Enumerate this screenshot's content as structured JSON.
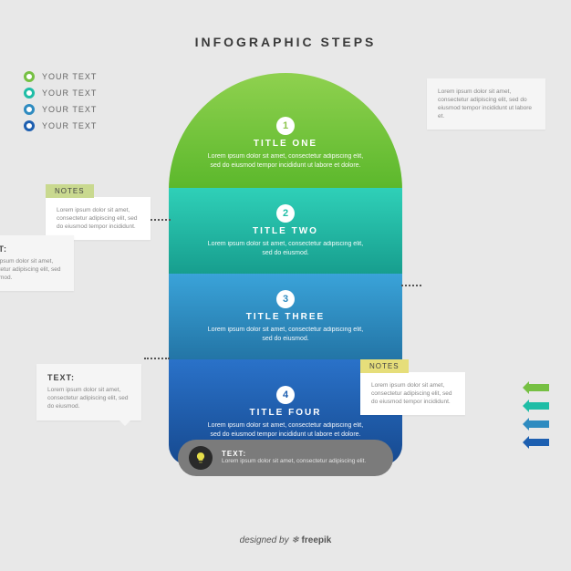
{
  "background_color": "#e8e8e8",
  "title": "INFOGRAPHIC STEPS",
  "title_color": "#3a3a3a",
  "legend": {
    "label": "YOUR TEXT",
    "items": [
      {
        "color": "#76c043"
      },
      {
        "color": "#1fbda6"
      },
      {
        "color": "#2e8bc0"
      },
      {
        "color": "#1d5fb0"
      }
    ]
  },
  "steps": [
    {
      "num": "1",
      "num_color": "#8bc34a",
      "title": "TITLE ONE",
      "body": "Lorem ipsum dolor sit amet, consectetur adipiscing elit, sed do eiusmod tempor incididunt ut labore et dolore.",
      "bg_top": "#8fd14f",
      "bg_bottom": "#5cb82c"
    },
    {
      "num": "2",
      "num_color": "#1fbda6",
      "title": "TITLE TWO",
      "body": "Lorem ipsum dolor sit amet, consectetur adipiscing elit, sed do eiusmod.",
      "bg_top": "#2fd0b8",
      "bg_bottom": "#179e8e"
    },
    {
      "num": "3",
      "num_color": "#2e8bc0",
      "title": "TITLE THREE",
      "body": "Lorem ipsum dolor sit amet, consectetur adipiscing elit, sed do eiusmod.",
      "bg_top": "#3aa3d9",
      "bg_bottom": "#2375a6"
    },
    {
      "num": "4",
      "num_color": "#1d5fb0",
      "title": "TITLE FOUR",
      "body": "Lorem ipsum dolor sit amet, consectetur adipiscing elit, sed do eiusmod tempor incididunt ut labore et dolore.",
      "bg_top": "#2a72c9",
      "bg_bottom": "#16498f"
    }
  ],
  "side_boxes": {
    "top_right": {
      "title": "",
      "body": "Lorem ipsum dolor sit amet, consectetur adipiscing elit, sed do eiusmod tempor incididunt ut labore et."
    },
    "text_right": {
      "title": "TEXT:",
      "body": "Lorem ipsum dolor sit amet, consectetur adipiscing elit, sed do eiusmod."
    },
    "text_left": {
      "title": "TEXT:",
      "body": "Lorem ipsum dolor sit amet, consectetur adipiscing elit, sed do eiusmod."
    },
    "note_left": {
      "tab": "NOTES",
      "tab_color": "#c9d98f",
      "body": "Lorem ipsum dolor sit amet, consectetur adipiscing elit, sed do eiusmod tempor incididunt."
    },
    "note_right": {
      "tab": "NOTES",
      "tab_color": "#e6de7a",
      "body": "Lorem ipsum dolor sit amet, consectetur adipiscing elit, sed do eiusmod tempor incididunt."
    }
  },
  "pill": {
    "bg": "#7b7b7b",
    "icon_bg": "#2a2a2a",
    "icon_color": "#e6de4a",
    "label": "TEXT:",
    "body": "Lorem ipsum dolor sit amet, consectetur adipiscing elit."
  },
  "arrows": [
    {
      "color": "#76c043"
    },
    {
      "color": "#1fbda6"
    },
    {
      "color": "#2e8bc0"
    },
    {
      "color": "#1d5fb0"
    }
  ],
  "credit_prefix": "designed by ",
  "credit_icon": "❄",
  "credit_brand": "freepik"
}
